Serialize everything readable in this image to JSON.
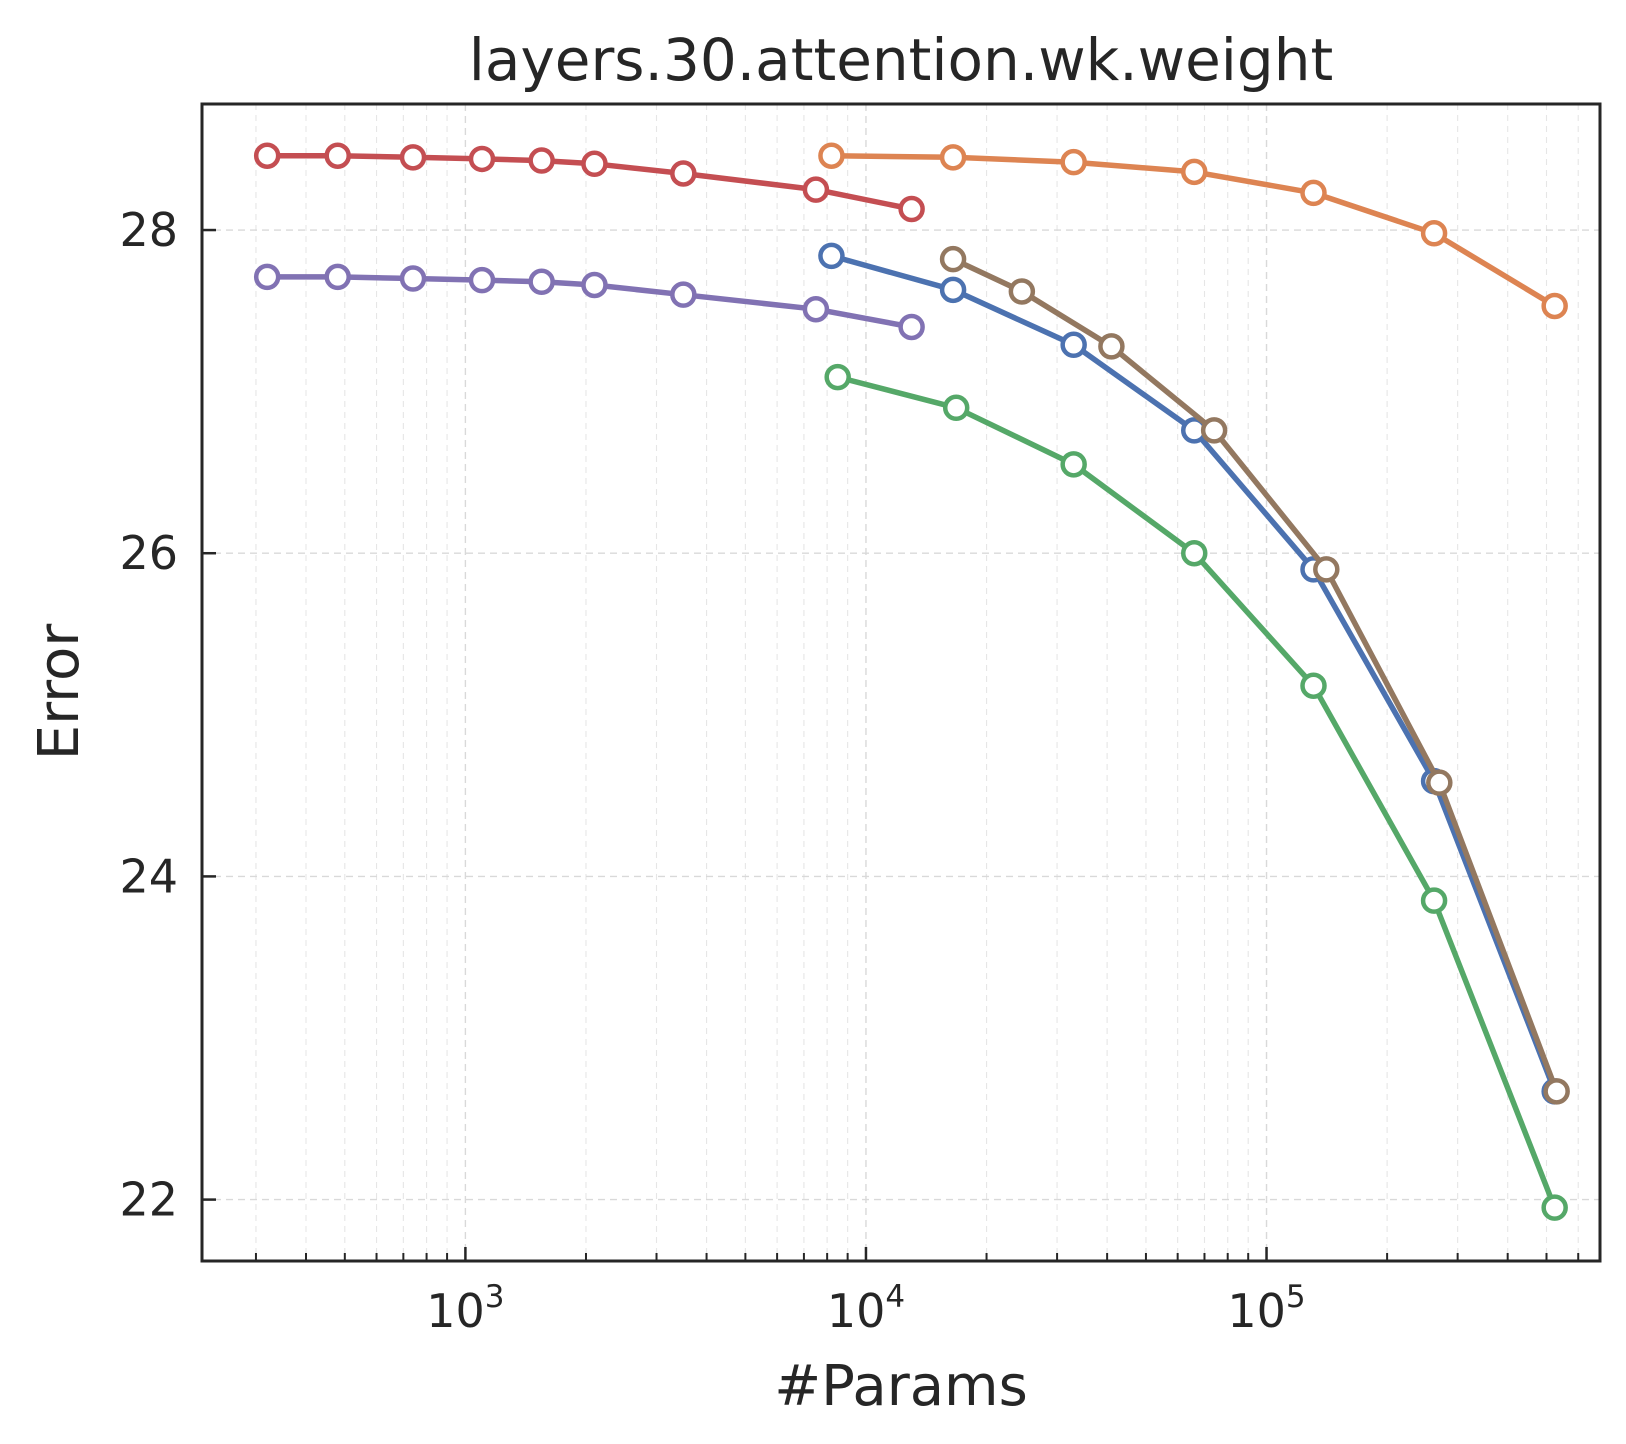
{
  "chart_data": {
    "type": "line",
    "title": "layers.30.attention.wk.weight",
    "xlabel": "#Params",
    "ylabel": "Error",
    "xscale": "log",
    "xlim": [
      220,
      680000
    ],
    "ylim": [
      21.62,
      28.78
    ],
    "grid": true,
    "legend": "none",
    "x_ticks": [
      {
        "value": 1000,
        "base": "10",
        "exp": "3"
      },
      {
        "value": 10000,
        "base": "10",
        "exp": "4"
      },
      {
        "value": 100000,
        "base": "10",
        "exp": "5"
      }
    ],
    "y_ticks": [
      {
        "value": 22,
        "label": "22"
      },
      {
        "value": 24,
        "label": "24"
      },
      {
        "value": 26,
        "label": "26"
      },
      {
        "value": 28,
        "label": "28"
      }
    ],
    "series": [
      {
        "name": "red",
        "color": "#c44e52",
        "x": [
          320,
          480,
          740,
          1100,
          1550,
          2100,
          3500,
          7500,
          13000
        ],
        "y": [
          28.46,
          28.46,
          28.45,
          28.44,
          28.43,
          28.41,
          28.35,
          28.25,
          28.13
        ]
      },
      {
        "name": "purple",
        "color": "#8172b3",
        "x": [
          320,
          480,
          740,
          1100,
          1550,
          2100,
          3500,
          7500,
          13000
        ],
        "y": [
          27.71,
          27.71,
          27.7,
          27.69,
          27.68,
          27.66,
          27.6,
          27.51,
          27.4
        ]
      },
      {
        "name": "orange",
        "color": "#dd8452",
        "x": [
          8200,
          16500,
          33000,
          66000,
          131000,
          262000,
          524000
        ],
        "y": [
          28.46,
          28.45,
          28.42,
          28.36,
          28.23,
          27.98,
          27.53
        ]
      },
      {
        "name": "blue",
        "color": "#4c72b0",
        "x": [
          8200,
          16500,
          33000,
          66000,
          131000,
          262000,
          524000
        ],
        "y": [
          27.84,
          27.63,
          27.29,
          26.76,
          25.9,
          24.59,
          22.67
        ]
      },
      {
        "name": "brown",
        "color": "#937860",
        "x": [
          16500,
          24500,
          41000,
          74000,
          141000,
          270000,
          530000
        ],
        "y": [
          27.82,
          27.62,
          27.28,
          26.76,
          25.9,
          24.58,
          22.67
        ]
      },
      {
        "name": "green",
        "color": "#55a868",
        "x": [
          8500,
          16800,
          33000,
          66000,
          131000,
          262000,
          524000
        ],
        "y": [
          27.09,
          26.9,
          26.55,
          26.0,
          25.18,
          23.85,
          21.95
        ]
      }
    ]
  }
}
